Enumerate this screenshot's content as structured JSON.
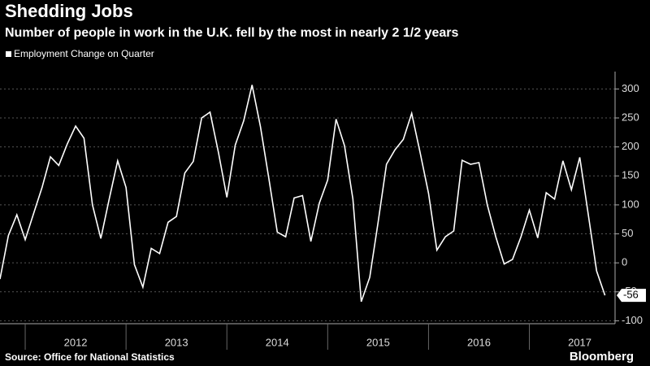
{
  "chart_data": {
    "type": "line",
    "title": "Shedding Jobs",
    "subtitle": "Number of people in work in the U.K. fell by the most in nearly 2 1/2 years",
    "source": "Source: Office for National Statistics",
    "brand": "Bloomberg",
    "x": [
      2011.75,
      2011.833,
      2011.917,
      2012,
      2012.083,
      2012.167,
      2012.25,
      2012.333,
      2012.417,
      2012.5,
      2012.583,
      2012.667,
      2012.75,
      2012.833,
      2012.917,
      2013,
      2013.083,
      2013.167,
      2013.25,
      2013.333,
      2013.417,
      2013.5,
      2013.583,
      2013.667,
      2013.75,
      2013.833,
      2013.917,
      2014,
      2014.083,
      2014.167,
      2014.25,
      2014.333,
      2014.417,
      2014.5,
      2014.583,
      2014.667,
      2014.75,
      2014.833,
      2014.917,
      2015,
      2015.083,
      2015.167,
      2015.25,
      2015.333,
      2015.417,
      2015.5,
      2015.583,
      2015.667,
      2015.75,
      2015.833,
      2015.917,
      2016,
      2016.083,
      2016.167,
      2016.25,
      2016.333,
      2016.417,
      2016.5,
      2016.583,
      2016.667,
      2016.75,
      2016.833,
      2016.917,
      2017,
      2017.083,
      2017.167,
      2017.25,
      2017.333,
      2017.417,
      2017.5,
      2017.583,
      2017.667,
      2017.75
    ],
    "series": [
      {
        "name": "Employment Change on Quarter",
        "color": "#ffffff",
        "values": [
          -28,
          47,
          83,
          40,
          85,
          130,
          183,
          168,
          205,
          236,
          215,
          100,
          42,
          110,
          176,
          130,
          -3,
          -42,
          25,
          16,
          70,
          80,
          155,
          175,
          250,
          260,
          190,
          113,
          203,
          245,
          307,
          235,
          145,
          53,
          45,
          112,
          116,
          37,
          103,
          143,
          248,
          202,
          110,
          -67,
          -25,
          70,
          170,
          195,
          213,
          258,
          190,
          120,
          22,
          45,
          55,
          177,
          170,
          173,
          100,
          45,
          -2,
          6,
          45,
          91,
          43,
          121,
          110,
          176,
          126,
          182,
          85,
          -14,
          -56
        ]
      }
    ],
    "xlim": [
      2011.75,
      2017.85
    ],
    "xticks": [
      {
        "value": 2012.5,
        "label": "2012"
      },
      {
        "value": 2013.5,
        "label": "2013"
      },
      {
        "value": 2014.5,
        "label": "2014"
      },
      {
        "value": 2015.5,
        "label": "2015"
      },
      {
        "value": 2016.5,
        "label": "2016"
      },
      {
        "value": 2017.5,
        "label": "2017"
      }
    ],
    "ylim": [
      -105,
      330
    ],
    "yticks": [
      -100,
      -50,
      0,
      50,
      100,
      150,
      200,
      250,
      300
    ],
    "grid": true,
    "legend": "top-left"
  }
}
